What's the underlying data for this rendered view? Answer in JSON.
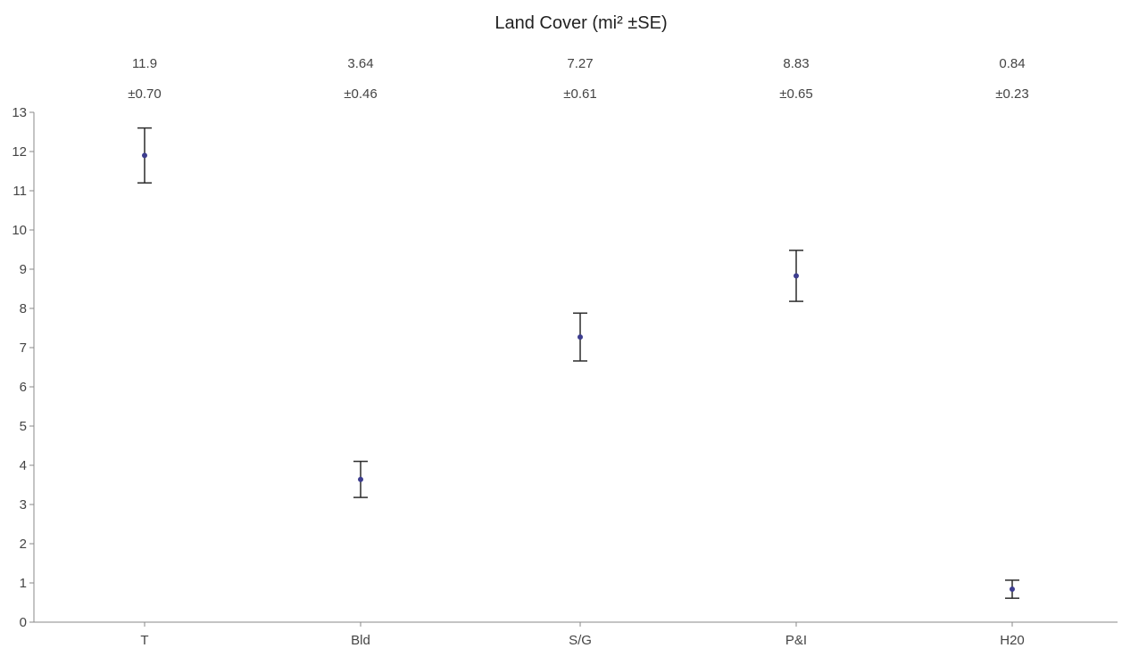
{
  "chart_data": {
    "type": "scatter",
    "title": "Land Cover (mi² ±SE)",
    "xlabel": "",
    "ylabel": "",
    "categories": [
      "T",
      "Bld",
      "S/G",
      "P&I",
      "H20"
    ],
    "values": [
      11.9,
      3.64,
      7.27,
      8.83,
      0.84
    ],
    "errors": [
      0.7,
      0.46,
      0.61,
      0.65,
      0.23
    ],
    "value_labels": [
      "11.9",
      "3.64",
      "7.27",
      "8.83",
      "0.84"
    ],
    "error_labels": [
      "±0.70",
      "±0.46",
      "±0.61",
      "±0.65",
      "±0.23"
    ],
    "ylim": [
      0,
      13
    ],
    "yticks": [
      0,
      1,
      2,
      3,
      4,
      5,
      6,
      7,
      8,
      9,
      10,
      11,
      12,
      13
    ],
    "grid": false,
    "legend": "none",
    "colors": {
      "error_bar": "#2b2b2b",
      "marker": "#3d3d8f",
      "axis": "#888888",
      "text": "#444444"
    }
  }
}
